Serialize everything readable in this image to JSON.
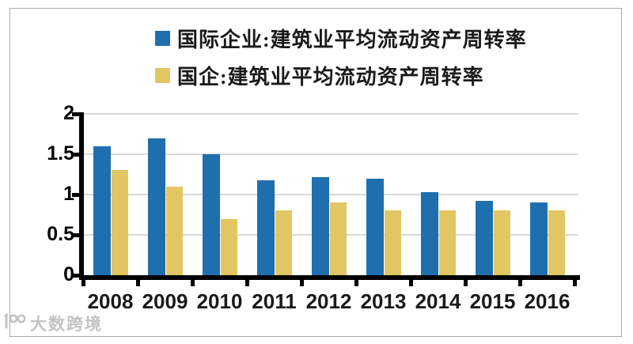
{
  "legend": [
    {
      "label": "国际企业:建筑业平均流动资产周转率",
      "color": "#1f6fae"
    },
    {
      "label": "国企:建筑业平均流动资产周转率",
      "color": "#e3c664"
    }
  ],
  "watermark": {
    "logo": "infinity-circles-icon",
    "text": "大数跨境"
  },
  "colors": {
    "series_blue": "#1f6fae",
    "series_yellow": "#e3c664",
    "gridline": "#d9d9d9",
    "axis": "#000000",
    "frame_border": "#ababab",
    "watermark": "#bdbdbd"
  },
  "chart_data": {
    "type": "bar",
    "title": "",
    "categories": [
      "2008",
      "2009",
      "2010",
      "2011",
      "2012",
      "2013",
      "2014",
      "2015",
      "2016"
    ],
    "series": [
      {
        "name": "国际企业:建筑业平均流动资产周转率",
        "color": "#1f6fae",
        "values": [
          1.6,
          1.7,
          1.5,
          1.18,
          1.22,
          1.2,
          1.03,
          0.92,
          0.9
        ]
      },
      {
        "name": "国企:建筑业平均流动资产周转率",
        "color": "#e3c664",
        "values": [
          1.3,
          1.1,
          0.7,
          0.8,
          0.9,
          0.8,
          0.8,
          0.8,
          0.8
        ]
      }
    ],
    "ylim": [
      0,
      2
    ],
    "y_ticks": [
      0,
      0.5,
      1,
      1.5,
      2
    ],
    "y_tick_labels": [
      "0",
      "0.5",
      "1",
      "1.5",
      "2"
    ],
    "grid": true,
    "legend_position": "top"
  }
}
